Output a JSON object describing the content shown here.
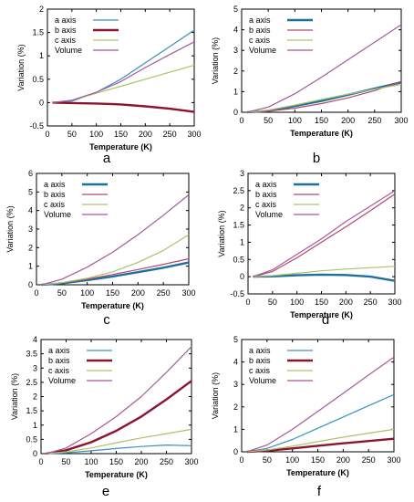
{
  "chart_data": [
    {
      "panel_label": "a",
      "type": "line",
      "xlabel": "Temperature (K)",
      "ylabel": "Variation (%)",
      "xlim": [
        0,
        300
      ],
      "ylim": [
        -0.5,
        2
      ],
      "xticks": [
        0,
        50,
        100,
        150,
        200,
        250,
        300
      ],
      "yticks": [
        -0.5,
        0,
        0.5,
        1,
        1.5,
        2
      ],
      "ytick_labels": [
        "-0.5",
        "0",
        "0.5",
        "1",
        "1.5",
        "2"
      ],
      "grid": false,
      "legend": "top-left",
      "series": [
        {
          "name": "a axis",
          "color": "#3a8fc4",
          "width": 1.2,
          "x": [
            10,
            50,
            100,
            150,
            200,
            250,
            300
          ],
          "y": [
            0,
            0.03,
            0.22,
            0.5,
            0.85,
            1.2,
            1.55
          ]
        },
        {
          "name": "b axis",
          "color": "#8b1530",
          "width": 2.4,
          "x": [
            10,
            50,
            100,
            150,
            200,
            250,
            300
          ],
          "y": [
            0,
            -0.01,
            -0.02,
            -0.04,
            -0.08,
            -0.13,
            -0.2
          ]
        },
        {
          "name": "c axis",
          "color": "#a9c46a",
          "width": 1.2,
          "x": [
            10,
            50,
            100,
            150,
            200,
            250,
            300
          ],
          "y": [
            0,
            0.05,
            0.2,
            0.35,
            0.5,
            0.65,
            0.8
          ]
        },
        {
          "name": "Volume",
          "color": "#a55a9a",
          "width": 1.2,
          "x": [
            10,
            50,
            100,
            150,
            200,
            250,
            300
          ],
          "y": [
            0,
            0.05,
            0.22,
            0.45,
            0.75,
            1.03,
            1.3
          ]
        }
      ]
    },
    {
      "panel_label": "b",
      "type": "line",
      "xlabel": "Temperature (K)",
      "ylabel": "Variation (%)",
      "xlim": [
        0,
        300
      ],
      "ylim": [
        0,
        5
      ],
      "xticks": [
        0,
        50,
        100,
        150,
        200,
        250,
        300
      ],
      "yticks": [
        0,
        1,
        2,
        3,
        4,
        5
      ],
      "ytick_labels": [
        "0",
        "1",
        "2",
        "3",
        "4",
        "5"
      ],
      "grid": false,
      "legend": "top-left",
      "series": [
        {
          "name": "a axis",
          "color": "#1f6f9f",
          "width": 2.4,
          "x": [
            10,
            50,
            100,
            150,
            200,
            250,
            300
          ],
          "y": [
            0,
            0.07,
            0.3,
            0.55,
            0.85,
            1.15,
            1.45
          ]
        },
        {
          "name": "b axis",
          "color": "#b04a6a",
          "width": 1.2,
          "x": [
            10,
            50,
            100,
            150,
            200,
            250,
            300
          ],
          "y": [
            0,
            0.05,
            0.2,
            0.42,
            0.7,
            1.05,
            1.5
          ]
        },
        {
          "name": "c axis",
          "color": "#a9c46a",
          "width": 1.2,
          "x": [
            10,
            50,
            100,
            150,
            200,
            250,
            300
          ],
          "y": [
            0,
            0.1,
            0.35,
            0.62,
            0.88,
            1.12,
            1.35
          ]
        },
        {
          "name": "Volume",
          "color": "#a55a9a",
          "width": 1.2,
          "x": [
            10,
            50,
            100,
            150,
            200,
            250,
            300
          ],
          "y": [
            0,
            0.25,
            0.9,
            1.7,
            2.55,
            3.4,
            4.25
          ]
        }
      ]
    },
    {
      "panel_label": "c",
      "type": "line",
      "xlabel": "Temperature (K)",
      "ylabel": "Variation (%)",
      "xlim": [
        0,
        300
      ],
      "ylim": [
        0,
        6
      ],
      "xticks": [
        0,
        50,
        100,
        150,
        200,
        250,
        300
      ],
      "yticks": [
        0,
        1,
        2,
        3,
        4,
        5,
        6
      ],
      "ytick_labels": [
        "0",
        "1",
        "2",
        "3",
        "4",
        "5",
        "6"
      ],
      "grid": false,
      "legend": "top-left",
      "series": [
        {
          "name": "a axis",
          "color": "#1f6f9f",
          "width": 2.4,
          "x": [
            10,
            50,
            100,
            150,
            200,
            250,
            300
          ],
          "y": [
            0,
            0.08,
            0.25,
            0.45,
            0.68,
            0.92,
            1.2
          ]
        },
        {
          "name": "b axis",
          "color": "#b04a6a",
          "width": 1.2,
          "x": [
            10,
            50,
            100,
            150,
            200,
            250,
            300
          ],
          "y": [
            0,
            0.1,
            0.3,
            0.55,
            0.82,
            1.1,
            1.4
          ]
        },
        {
          "name": "c axis",
          "color": "#a9c46a",
          "width": 1.2,
          "x": [
            10,
            50,
            100,
            150,
            200,
            250,
            300
          ],
          "y": [
            0,
            0.12,
            0.35,
            0.7,
            1.2,
            1.85,
            2.7
          ]
        },
        {
          "name": "Volume",
          "color": "#a55a9a",
          "width": 1.2,
          "x": [
            10,
            50,
            100,
            150,
            200,
            250,
            300
          ],
          "y": [
            0,
            0.3,
            0.95,
            1.75,
            2.7,
            3.75,
            4.85
          ]
        }
      ]
    },
    {
      "panel_label": "d",
      "type": "line",
      "xlabel": "Temperature (K)",
      "ylabel": "Variation (%)",
      "xlim": [
        0,
        300
      ],
      "ylim": [
        -0.5,
        3
      ],
      "xticks": [
        0,
        50,
        100,
        150,
        200,
        250,
        300
      ],
      "yticks": [
        -0.5,
        0,
        0.5,
        1,
        1.5,
        2,
        2.5,
        3
      ],
      "ytick_labels": [
        "-0.5",
        "0",
        "0.5",
        "1",
        "1.5",
        "2",
        "2.5",
        "3"
      ],
      "grid": false,
      "legend": "top-left",
      "series": [
        {
          "name": "a axis",
          "color": "#1f6f9f",
          "width": 2.4,
          "x": [
            10,
            50,
            100,
            150,
            200,
            250,
            300
          ],
          "y": [
            0,
            0.01,
            0.04,
            0.06,
            0.05,
            0.0,
            -0.12
          ]
        },
        {
          "name": "b axis",
          "color": "#b04a6a",
          "width": 1.2,
          "x": [
            10,
            50,
            100,
            150,
            200,
            250,
            300
          ],
          "y": [
            0,
            0.15,
            0.55,
            1.0,
            1.45,
            1.92,
            2.4
          ]
        },
        {
          "name": "c axis",
          "color": "#a9c46a",
          "width": 1.2,
          "x": [
            10,
            50,
            100,
            150,
            200,
            250,
            300
          ],
          "y": [
            0,
            0.03,
            0.1,
            0.17,
            0.22,
            0.26,
            0.3
          ]
        },
        {
          "name": "Volume",
          "color": "#a55a9a",
          "width": 1.2,
          "x": [
            10,
            50,
            100,
            150,
            200,
            250,
            300
          ],
          "y": [
            0,
            0.2,
            0.65,
            1.1,
            1.6,
            2.05,
            2.5
          ]
        }
      ]
    },
    {
      "panel_label": "e",
      "type": "line",
      "xlabel": "Temperature (K)",
      "ylabel": "Variation (%)",
      "xlim": [
        0,
        300
      ],
      "ylim": [
        0,
        4
      ],
      "xticks": [
        0,
        50,
        100,
        150,
        200,
        250,
        300
      ],
      "yticks": [
        0,
        0.5,
        1,
        1.5,
        2,
        2.5,
        3,
        3.5,
        4
      ],
      "ytick_labels": [
        "0",
        "0.5",
        "1",
        "1.5",
        "2",
        "2.5",
        "3",
        "3.5",
        "4"
      ],
      "grid": false,
      "legend": "top-left",
      "series": [
        {
          "name": "a axis",
          "color": "#3a8fc4",
          "width": 1.2,
          "x": [
            10,
            50,
            100,
            150,
            200,
            250,
            300
          ],
          "y": [
            0,
            0.03,
            0.1,
            0.18,
            0.25,
            0.3,
            0.28
          ]
        },
        {
          "name": "b axis",
          "color": "#8b1530",
          "width": 2.4,
          "x": [
            10,
            50,
            100,
            150,
            200,
            250,
            300
          ],
          "y": [
            0,
            0.12,
            0.4,
            0.8,
            1.3,
            1.9,
            2.55
          ]
        },
        {
          "name": "c axis",
          "color": "#a9c46a",
          "width": 1.2,
          "x": [
            10,
            50,
            100,
            150,
            200,
            250,
            300
          ],
          "y": [
            0,
            0.06,
            0.2,
            0.38,
            0.55,
            0.7,
            0.85
          ]
        },
        {
          "name": "Volume",
          "color": "#a55a9a",
          "width": 1.2,
          "x": [
            10,
            50,
            100,
            150,
            200,
            250,
            300
          ],
          "y": [
            0,
            0.2,
            0.7,
            1.3,
            2.0,
            2.85,
            3.75
          ]
        }
      ]
    },
    {
      "panel_label": "f",
      "type": "line",
      "xlabel": "Temperature (K)",
      "ylabel": "Variation (%)",
      "xlim": [
        0,
        300
      ],
      "ylim": [
        0,
        5
      ],
      "xticks": [
        0,
        50,
        100,
        150,
        200,
        250,
        300
      ],
      "yticks": [
        0,
        1,
        2,
        3,
        4,
        5
      ],
      "ytick_labels": [
        "0",
        "1",
        "2",
        "3",
        "4",
        "5"
      ],
      "grid": false,
      "legend": "top-left",
      "series": [
        {
          "name": "a axis",
          "color": "#3a8fc4",
          "width": 1.2,
          "x": [
            10,
            50,
            100,
            150,
            200,
            250,
            300
          ],
          "y": [
            0,
            0.15,
            0.55,
            1.05,
            1.55,
            2.05,
            2.55
          ]
        },
        {
          "name": "b axis",
          "color": "#8b1530",
          "width": 2.4,
          "x": [
            10,
            50,
            100,
            150,
            200,
            250,
            300
          ],
          "y": [
            0,
            0.05,
            0.15,
            0.27,
            0.38,
            0.48,
            0.58
          ]
        },
        {
          "name": "c axis",
          "color": "#a9c46a",
          "width": 1.2,
          "x": [
            10,
            50,
            100,
            150,
            200,
            250,
            300
          ],
          "y": [
            0,
            0.08,
            0.25,
            0.45,
            0.65,
            0.83,
            1.0
          ]
        },
        {
          "name": "Volume",
          "color": "#a55a9a",
          "width": 1.2,
          "x": [
            10,
            50,
            100,
            150,
            200,
            250,
            300
          ],
          "y": [
            0,
            0.3,
            1.0,
            1.8,
            2.6,
            3.42,
            4.22
          ]
        }
      ]
    }
  ]
}
